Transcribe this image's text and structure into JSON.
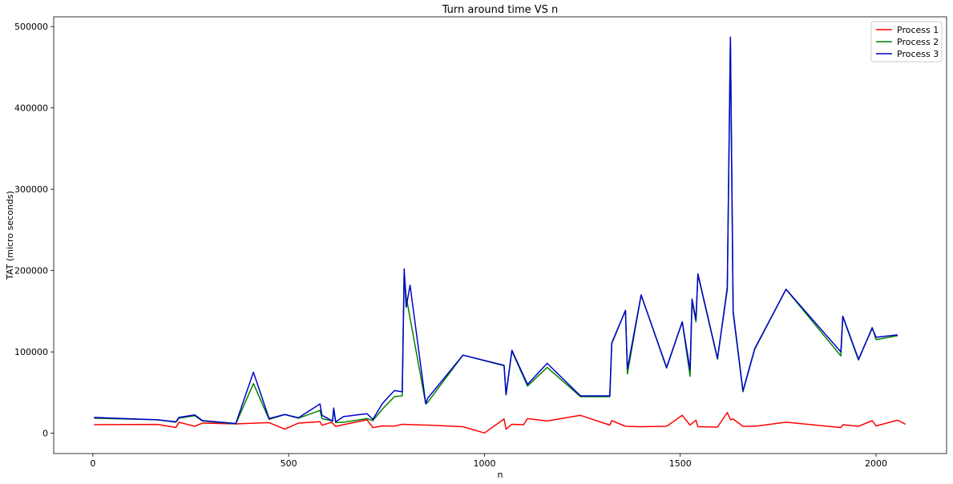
{
  "chart_data": {
    "type": "line",
    "title": "Turn around time VS n",
    "xlabel": "n",
    "ylabel": "TAT (micro seconds)",
    "xlim": [
      -100,
      2180
    ],
    "ylim": [
      -25000,
      512000
    ],
    "xticks": [
      0,
      500,
      1000,
      1500,
      2000
    ],
    "yticks": [
      0,
      100000,
      200000,
      300000,
      400000,
      500000
    ],
    "legend": "top-right",
    "grid": false,
    "series": [
      {
        "name": "Process 1",
        "color": "#ff0000",
        "x": [
          3,
          165,
          212,
          220,
          260,
          280,
          365,
          450,
          490,
          525,
          580,
          585,
          610,
          620,
          700,
          715,
          740,
          770,
          790,
          800,
          850,
          855,
          945,
          1000,
          1050,
          1055,
          1070,
          1100,
          1110,
          1160,
          1245,
          1320,
          1325,
          1360,
          1400,
          1465,
          1505,
          1525,
          1540,
          1545,
          1595,
          1620,
          1628,
          1635,
          1660,
          1690,
          1770,
          1910,
          1915,
          1955,
          1990,
          2000,
          2055,
          2075
        ],
        "y": [
          10500,
          10800,
          7000,
          13500,
          8500,
          12500,
          11500,
          13000,
          5000,
          12500,
          14200,
          9800,
          13500,
          8500,
          16500,
          7000,
          9000,
          8800,
          11000,
          10800,
          10000,
          10000,
          8000,
          300,
          17500,
          5000,
          11000,
          10500,
          18000,
          15000,
          22000,
          10000,
          15500,
          8500,
          8000,
          8500,
          22000,
          10000,
          16000,
          8000,
          7500,
          25500,
          16500,
          17500,
          8500,
          8500,
          13500,
          7000,
          10500,
          8500,
          15500,
          9000,
          16000,
          11000
        ]
      },
      {
        "name": "Process 2",
        "color": "#008000",
        "x": [
          3,
          165,
          212,
          220,
          260,
          280,
          365,
          410,
          450,
          490,
          525,
          580,
          585,
          612,
          615,
          620,
          640,
          700,
          715,
          740,
          770,
          790,
          795,
          800,
          850,
          855,
          945,
          1050,
          1055,
          1070,
          1110,
          1160,
          1245,
          1320,
          1325,
          1360,
          1365,
          1400,
          1465,
          1505,
          1525,
          1530,
          1540,
          1545,
          1595,
          1620,
          1628,
          1635,
          1660,
          1690,
          1770,
          1910,
          1915,
          1955,
          1990,
          2000,
          2055
        ],
        "y": [
          18500,
          16500,
          13500,
          18500,
          21500,
          15000,
          11500,
          61000,
          17000,
          23000,
          18500,
          28000,
          18000,
          15000,
          30000,
          13000,
          13500,
          18000,
          15500,
          30000,
          45000,
          46000,
          198000,
          168000,
          36000,
          38000,
          96000,
          83000,
          47000,
          101000,
          58000,
          81000,
          45000,
          45000,
          110000,
          151000,
          73000,
          170000,
          80000,
          137000,
          70000,
          162000,
          137000,
          195000,
          91000,
          180000,
          485000,
          148000,
          51000,
          103000,
          177000,
          95000,
          143000,
          90000,
          130000,
          115000,
          120000
        ]
      },
      {
        "name": "Process 3",
        "color": "#0000cc",
        "x": [
          3,
          165,
          212,
          220,
          260,
          280,
          365,
          410,
          450,
          490,
          525,
          580,
          585,
          612,
          615,
          620,
          640,
          700,
          715,
          740,
          770,
          790,
          795,
          800,
          810,
          850,
          855,
          945,
          1050,
          1055,
          1070,
          1110,
          1160,
          1245,
          1320,
          1325,
          1360,
          1365,
          1400,
          1465,
          1505,
          1525,
          1530,
          1540,
          1545,
          1595,
          1620,
          1628,
          1635,
          1660,
          1690,
          1770,
          1910,
          1915,
          1955,
          1990,
          2000,
          2055
        ],
        "y": [
          19500,
          16500,
          14000,
          19500,
          22500,
          15500,
          12000,
          75000,
          18000,
          23000,
          19000,
          36000,
          22000,
          15000,
          31000,
          14000,
          20500,
          24000,
          17000,
          37000,
          52500,
          51000,
          202000,
          155000,
          182000,
          36500,
          43000,
          96000,
          83500,
          48000,
          102000,
          60000,
          86000,
          46000,
          46000,
          111000,
          151000,
          79000,
          170000,
          81000,
          137000,
          78000,
          165000,
          140000,
          196000,
          92000,
          177000,
          487000,
          150000,
          52000,
          104000,
          177000,
          100000,
          144000,
          91000,
          129000,
          118000,
          121000
        ]
      }
    ]
  }
}
